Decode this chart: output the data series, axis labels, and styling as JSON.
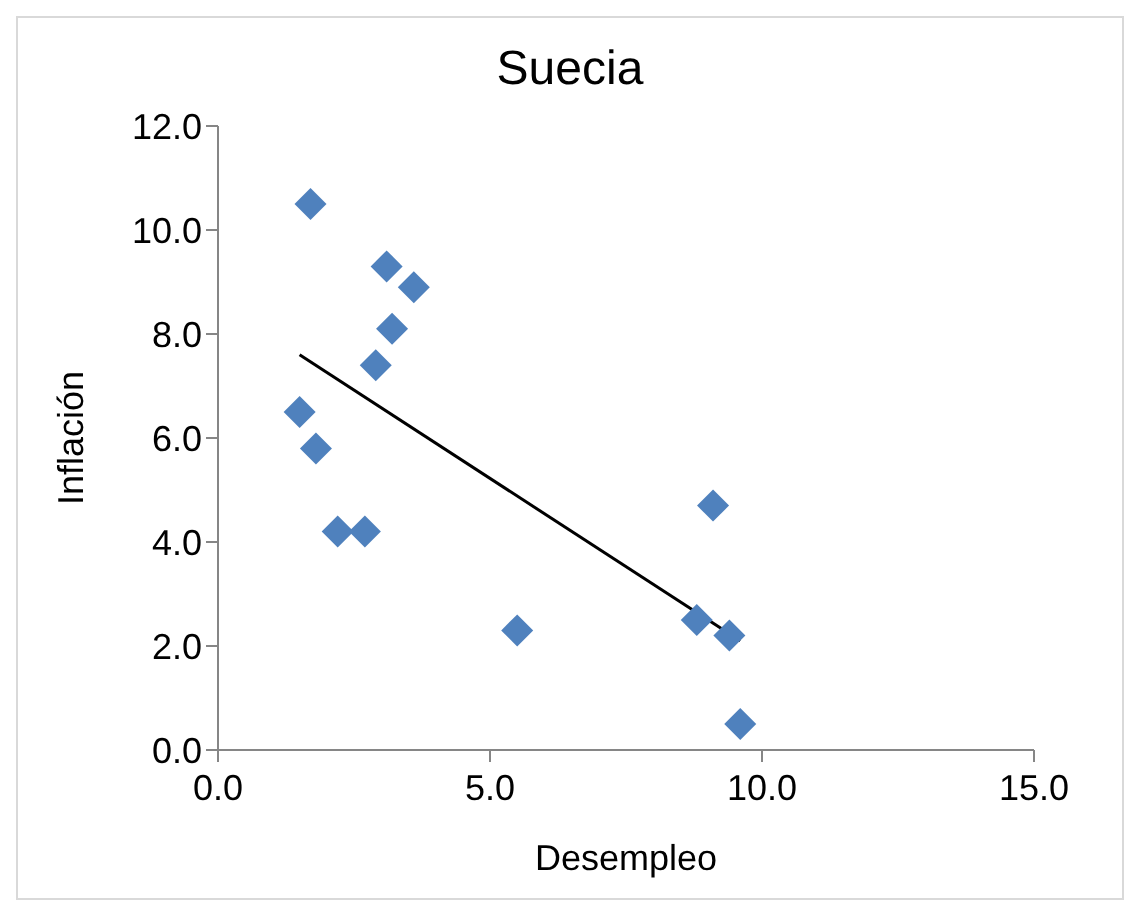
{
  "chart_data": {
    "type": "scatter",
    "title": "Suecia",
    "xlabel": "Desempleo",
    "ylabel": "Inflación",
    "xlim": [
      0,
      15
    ],
    "xticks": [
      {
        "value": 0,
        "label": "0.0"
      },
      {
        "value": 5,
        "label": "5.0"
      },
      {
        "value": 10,
        "label": "10.0"
      },
      {
        "value": 15,
        "label": "15.0"
      }
    ],
    "ylim": [
      0,
      12
    ],
    "yticks": [
      {
        "value": 0,
        "label": "0.0"
      },
      {
        "value": 2,
        "label": "2.0"
      },
      {
        "value": 4,
        "label": "4.0"
      },
      {
        "value": 6,
        "label": "6.0"
      },
      {
        "value": 8,
        "label": "8.0"
      },
      {
        "value": 10,
        "label": "10.0"
      },
      {
        "value": 12,
        "label": "12.0"
      }
    ],
    "grid": false,
    "legend": false,
    "marker": "diamond",
    "series": [
      {
        "color": "#4f81bd",
        "x": [
          1.7,
          3.1,
          3.6,
          3.2,
          2.9,
          1.5,
          1.8,
          2.2,
          2.7,
          5.5,
          9.1,
          8.8,
          9.4,
          9.6
        ],
        "values": [
          10.5,
          9.3,
          8.9,
          8.1,
          7.4,
          6.5,
          5.8,
          4.2,
          4.2,
          2.3,
          4.7,
          2.5,
          2.2,
          0.5
        ]
      },
      {
        "type": "line",
        "color": "#000000",
        "x": [
          1.5,
          9.6
        ],
        "values": [
          7.6,
          2.1
        ],
        "marker": "none",
        "line_style": "solid"
      }
    ]
  }
}
